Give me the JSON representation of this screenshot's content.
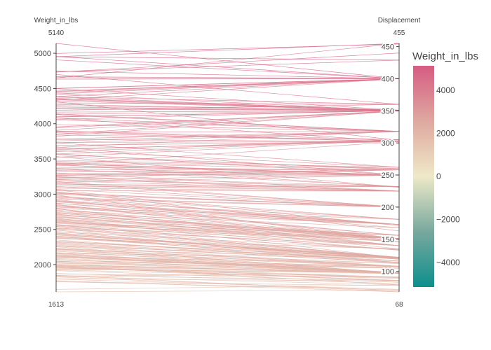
{
  "chart_data": {
    "type": "parcoords",
    "color_dimension": "Weight_in_lbs",
    "colorscale": [
      "#0d8f8c",
      "#78a89e",
      "#eee9c8",
      "#dfa8a0",
      "#d65c82"
    ],
    "dimensions": [
      {
        "label": "Weight_in_lbs",
        "range": [
          1613,
          5140
        ],
        "range_labels": [
          "5140",
          "1613"
        ],
        "ticks": [
          2000,
          2500,
          3000,
          3500,
          4000,
          4500,
          5000
        ],
        "tick_labels": [
          "2000",
          "2500",
          "3000",
          "3500",
          "4000",
          "4500",
          "5000"
        ]
      },
      {
        "label": "Displacement",
        "range": [
          68,
          455
        ],
        "range_labels": [
          "455",
          "68"
        ],
        "ticks": [
          100,
          150,
          200,
          250,
          300,
          350,
          400,
          450
        ],
        "tick_labels": [
          "100",
          "150",
          "200",
          "250",
          "300",
          "350",
          "400",
          "450"
        ]
      }
    ],
    "records": [
      [
        1613,
        71
      ],
      [
        1649,
        79
      ],
      [
        1755,
        78
      ],
      [
        1760,
        71
      ],
      [
        1773,
        68
      ],
      [
        1795,
        72
      ],
      [
        1800,
        85
      ],
      [
        1825,
        70
      ],
      [
        1834,
        79
      ],
      [
        1835,
        97
      ],
      [
        1845,
        86
      ],
      [
        1850,
        68
      ],
      [
        1867,
        91
      ],
      [
        1875,
        81
      ],
      [
        1915,
        83
      ],
      [
        1925,
        89
      ],
      [
        1937,
        98
      ],
      [
        1940,
        97
      ],
      [
        1950,
        91
      ],
      [
        1955,
        90
      ],
      [
        1963,
        86
      ],
      [
        1965,
        85
      ],
      [
        1968,
        90
      ],
      [
        1970,
        85
      ],
      [
        1975,
        97
      ],
      [
        1980,
        91
      ],
      [
        1985,
        98
      ],
      [
        1990,
        79
      ],
      [
        1995,
        97
      ],
      [
        2000,
        97
      ],
      [
        2003,
        97
      ],
      [
        2020,
        98
      ],
      [
        2025,
        105
      ],
      [
        2035,
        97
      ],
      [
        2045,
        108
      ],
      [
        2050,
        98
      ],
      [
        2065,
        105
      ],
      [
        2070,
        98
      ],
      [
        2074,
        97
      ],
      [
        2085,
        105
      ],
      [
        2100,
        107
      ],
      [
        2108,
        97
      ],
      [
        2110,
        113
      ],
      [
        2120,
        97
      ],
      [
        2125,
        98
      ],
      [
        2130,
        97
      ],
      [
        2135,
        105
      ],
      [
        2145,
        97
      ],
      [
        2155,
        98
      ],
      [
        2160,
        121
      ],
      [
        2164,
        97
      ],
      [
        2171,
        107
      ],
      [
        2190,
        98
      ],
      [
        2200,
        107
      ],
      [
        2202,
        108
      ],
      [
        2215,
        112
      ],
      [
        2219,
        121
      ],
      [
        2226,
        97
      ],
      [
        2234,
        108
      ],
      [
        2254,
        97
      ],
      [
        2264,
        107
      ],
      [
        2265,
        121
      ],
      [
        2278,
        108
      ],
      [
        2288,
        114
      ],
      [
        2300,
        113
      ],
      [
        2310,
        116
      ],
      [
        2320,
        121
      ],
      [
        2330,
        120
      ],
      [
        2335,
        116
      ],
      [
        2350,
        114
      ],
      [
        2370,
        135
      ],
      [
        2379,
        119
      ],
      [
        2385,
        122
      ],
      [
        2395,
        121
      ],
      [
        2401,
        114
      ],
      [
        2405,
        119
      ],
      [
        2420,
        122
      ],
      [
        2430,
        120
      ],
      [
        2434,
        121
      ],
      [
        2445,
        122
      ],
      [
        2451,
        119
      ],
      [
        2464,
        134
      ],
      [
        2472,
        116
      ],
      [
        2490,
        120
      ],
      [
        2500,
        140
      ],
      [
        2511,
        121
      ],
      [
        2515,
        151
      ],
      [
        2525,
        122
      ],
      [
        2542,
        121
      ],
      [
        2545,
        134
      ],
      [
        2556,
        133
      ],
      [
        2560,
        140
      ],
      [
        2565,
        151
      ],
      [
        2572,
        121
      ],
      [
        2587,
        146
      ],
      [
        2595,
        151
      ],
      [
        2600,
        156
      ],
      [
        2605,
        140
      ],
      [
        2615,
        146
      ],
      [
        2625,
        133
      ],
      [
        2634,
        140
      ],
      [
        2640,
        151
      ],
      [
        2648,
        156
      ],
      [
        2660,
        121
      ],
      [
        2670,
        146
      ],
      [
        2678,
        151
      ],
      [
        2690,
        140
      ],
      [
        2700,
        156
      ],
      [
        2711,
        151
      ],
      [
        2720,
        135
      ],
      [
        2730,
        151
      ],
      [
        2735,
        168
      ],
      [
        2745,
        140
      ],
      [
        2755,
        151
      ],
      [
        2765,
        173
      ],
      [
        2774,
        146
      ],
      [
        2789,
        151
      ],
      [
        2795,
        140
      ],
      [
        2800,
        173
      ],
      [
        2815,
        181
      ],
      [
        2830,
        173
      ],
      [
        2835,
        151
      ],
      [
        2845,
        156
      ],
      [
        2855,
        146
      ],
      [
        2868,
        173
      ],
      [
        2875,
        156
      ],
      [
        2890,
        173
      ],
      [
        2900,
        168
      ],
      [
        2905,
        173
      ],
      [
        2910,
        181
      ],
      [
        2925,
        151
      ],
      [
        2930,
        200
      ],
      [
        2945,
        173
      ],
      [
        2950,
        200
      ],
      [
        2965,
        173
      ],
      [
        2975,
        181
      ],
      [
        2990,
        146
      ],
      [
        3000,
        200
      ],
      [
        3012,
        181
      ],
      [
        3015,
        200
      ],
      [
        3021,
        200
      ],
      [
        3035,
        163
      ],
      [
        3050,
        225
      ],
      [
        3060,
        171
      ],
      [
        3070,
        200
      ],
      [
        3085,
        225
      ],
      [
        3102,
        232
      ],
      [
        3110,
        200
      ],
      [
        3121,
        225
      ],
      [
        3140,
        232
      ],
      [
        3150,
        225
      ],
      [
        3160,
        200
      ],
      [
        3165,
        250
      ],
      [
        3180,
        200
      ],
      [
        3190,
        225
      ],
      [
        3205,
        232
      ],
      [
        3210,
        250
      ],
      [
        3225,
        225
      ],
      [
        3233,
        258
      ],
      [
        3245,
        225
      ],
      [
        3250,
        232
      ],
      [
        3265,
        258
      ],
      [
        3270,
        250
      ],
      [
        3282,
        250
      ],
      [
        3288,
        258
      ],
      [
        3302,
        225
      ],
      [
        3329,
        250
      ],
      [
        3336,
        250
      ],
      [
        3353,
        258
      ],
      [
        3360,
        232
      ],
      [
        3365,
        250
      ],
      [
        3381,
        258
      ],
      [
        3410,
        250
      ],
      [
        3420,
        302
      ],
      [
        3425,
        231
      ],
      [
        3430,
        250
      ],
      [
        3432,
        250
      ],
      [
        3439,
        250
      ],
      [
        3445,
        258
      ],
      [
        3465,
        260
      ],
      [
        3480,
        262
      ],
      [
        3525,
        305
      ],
      [
        3530,
        260
      ],
      [
        3535,
        231
      ],
      [
        3563,
        258
      ],
      [
        3570,
        305
      ],
      [
        3574,
        250
      ],
      [
        3605,
        305
      ],
      [
        3620,
        262
      ],
      [
        3632,
        305
      ],
      [
        3645,
        302
      ],
      [
        3664,
        318
      ],
      [
        3672,
        250
      ],
      [
        3693,
        302
      ],
      [
        3725,
        318
      ],
      [
        3730,
        262
      ],
      [
        3735,
        302
      ],
      [
        3755,
        318
      ],
      [
        3777,
        302
      ],
      [
        3785,
        318
      ],
      [
        3820,
        350
      ],
      [
        3840,
        305
      ],
      [
        3850,
        350
      ],
      [
        3870,
        302
      ],
      [
        3880,
        318
      ],
      [
        3892,
        302
      ],
      [
        3897,
        305
      ],
      [
        3907,
        350
      ],
      [
        3940,
        350
      ],
      [
        3955,
        350
      ],
      [
        3988,
        318
      ],
      [
        4054,
        318
      ],
      [
        4060,
        351
      ],
      [
        4080,
        302
      ],
      [
        4082,
        318
      ],
      [
        4096,
        350
      ],
      [
        4100,
        350
      ],
      [
        4129,
        318
      ],
      [
        4135,
        350
      ],
      [
        4140,
        318
      ],
      [
        4165,
        350
      ],
      [
        4190,
        360
      ],
      [
        4209,
        350
      ],
      [
        4215,
        351
      ],
      [
        4237,
        350
      ],
      [
        4257,
        351
      ],
      [
        4274,
        350
      ],
      [
        4295,
        360
      ],
      [
        4312,
        304
      ],
      [
        4325,
        350
      ],
      [
        4335,
        400
      ],
      [
        4341,
        350
      ],
      [
        4354,
        350
      ],
      [
        4360,
        351
      ],
      [
        4380,
        350
      ],
      [
        4382,
        360
      ],
      [
        4385,
        400
      ],
      [
        4422,
        400
      ],
      [
        4425,
        350
      ],
      [
        4440,
        400
      ],
      [
        4456,
        400
      ],
      [
        4464,
        400
      ],
      [
        4498,
        351
      ],
      [
        4499,
        400
      ],
      [
        4502,
        400
      ],
      [
        4633,
        400
      ],
      [
        4651,
        455
      ],
      [
        4654,
        400
      ],
      [
        4668,
        400
      ],
      [
        4699,
        360
      ],
      [
        4732,
        440
      ],
      [
        4735,
        429
      ],
      [
        4746,
        400
      ],
      [
        4906,
        400
      ],
      [
        4951,
        429
      ],
      [
        4952,
        455
      ],
      [
        4955,
        400
      ],
      [
        4997,
        454
      ],
      [
        5140,
        400
      ]
    ]
  }
}
